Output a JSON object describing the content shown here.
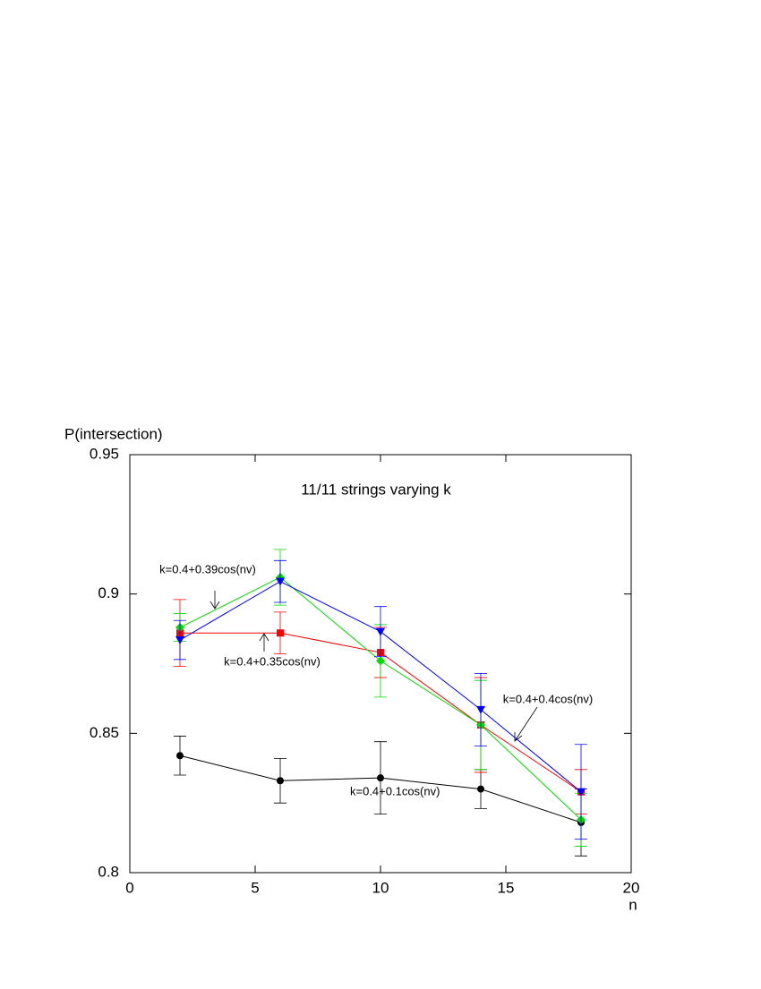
{
  "chart_data": {
    "type": "line",
    "title": "11/11 strings varying k",
    "xlabel": "n",
    "ylabel": "P(intersection)",
    "x": [
      2,
      6,
      10,
      14,
      18
    ],
    "series": [
      {
        "name": "k=0.4+0.1cos(nv)",
        "color": "#000000",
        "marker": "circle",
        "values": [
          0.842,
          0.833,
          0.834,
          0.83,
          0.818
        ],
        "errors": [
          0.007,
          0.008,
          0.013,
          0.007,
          0.012
        ]
      },
      {
        "name": "k=0.4+0.35cos(nv)",
        "color": "#ff0000",
        "marker": "square",
        "values": [
          0.886,
          0.886,
          0.879,
          0.853,
          0.829
        ],
        "errors": [
          0.012,
          0.0075,
          0.009,
          0.017,
          0.008
        ]
      },
      {
        "name": "k=0.4+0.39cos(nv)",
        "color": "#00dd00",
        "marker": "diamond",
        "values": [
          0.888,
          0.906,
          0.876,
          0.853,
          0.819
        ],
        "errors": [
          0.005,
          0.01,
          0.013,
          0.016,
          0.0095
        ]
      },
      {
        "name": "k=0.4+0.4cos(nv)",
        "color": "#0000ff",
        "marker": "triangle-down",
        "values": [
          0.8835,
          0.9045,
          0.8865,
          0.8585,
          0.829
        ],
        "errors": [
          0.007,
          0.0075,
          0.009,
          0.013,
          0.017
        ]
      }
    ],
    "xlim": [
      0,
      20
    ],
    "xticks": [
      0,
      5,
      10,
      15,
      20
    ],
    "ylim": [
      0.8,
      0.95
    ],
    "yticks": [
      0.8,
      0.85,
      0.9,
      0.95
    ],
    "grid": false
  }
}
